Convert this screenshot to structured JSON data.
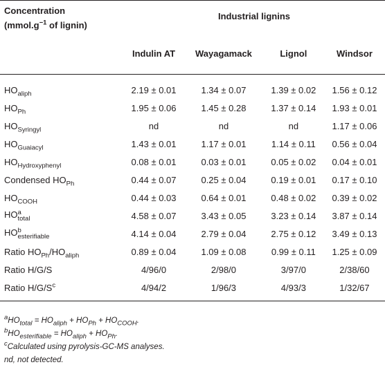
{
  "header": {
    "label_lines": [
      [
        {
          "text": "Concentration"
        }
      ],
      [
        {
          "text": "(mmol.g"
        },
        {
          "text": "−1",
          "style": "sup"
        },
        {
          "text": " of lignin)"
        }
      ]
    ],
    "group": "Industrial lignins",
    "columns": [
      "Indulin AT",
      "Wayagamack",
      "Lignol",
      "Windsor"
    ]
  },
  "table": {
    "rows": [
      {
        "label": [
          {
            "text": "HO"
          },
          {
            "text": "aliph",
            "style": "sub"
          }
        ],
        "values": [
          "2.19 ± 0.01",
          "1.34 ± 0.07",
          "1.39 ± 0.02",
          "1.56 ± 0.12"
        ]
      },
      {
        "label": [
          {
            "text": "HO"
          },
          {
            "text": "Ph",
            "style": "sub"
          }
        ],
        "values": [
          "1.95 ± 0.06",
          "1.45 ± 0.28",
          "1.37 ± 0.14",
          "1.93 ± 0.01"
        ]
      },
      {
        "label": [
          {
            "text": "HO"
          },
          {
            "text": "Syringyl",
            "style": "sub"
          }
        ],
        "values": [
          "nd",
          "nd",
          "nd",
          "1.17 ± 0.06"
        ]
      },
      {
        "label": [
          {
            "text": "HO"
          },
          {
            "text": "Guaiacyl",
            "style": "sub"
          }
        ],
        "values": [
          "1.43 ± 0.01",
          "1.17 ± 0.01",
          "1.14 ± 0.11",
          "0.56 ± 0.04"
        ]
      },
      {
        "label": [
          {
            "text": "HO"
          },
          {
            "text": "Hydroxyphenyl",
            "style": "sub"
          }
        ],
        "values": [
          "0.08 ± 0.01",
          "0.03 ± 0.01",
          "0.05 ± 0.02",
          "0.04 ± 0.01"
        ]
      },
      {
        "label": [
          {
            "text": "Condensed HO"
          },
          {
            "text": "Ph",
            "style": "sub"
          }
        ],
        "values": [
          "0.44 ± 0.07",
          "0.25 ± 0.04",
          "0.19 ± 0.01",
          "0.17 ± 0.10"
        ]
      },
      {
        "label": [
          {
            "text": "HO"
          },
          {
            "text": "COOH",
            "style": "sub"
          }
        ],
        "values": [
          "0.44 ± 0.03",
          "0.64 ± 0.01",
          "0.48 ± 0.02",
          "0.39 ± 0.02"
        ]
      },
      {
        "label": [
          {
            "text": "HO"
          },
          {
            "text": "a",
            "style": "sup"
          },
          {
            "text": "total",
            "style": "sub"
          }
        ],
        "values": [
          "4.58 ± 0.07",
          "3.43 ± 0.05",
          "3.23 ± 0.14",
          "3.87 ± 0.14"
        ]
      },
      {
        "label": [
          {
            "text": "HO"
          },
          {
            "text": "b",
            "style": "sup"
          },
          {
            "text": "esterifiable",
            "style": "sub"
          }
        ],
        "values": [
          "4.14 ± 0.04",
          "2.79 ± 0.04",
          "2.75 ± 0.12",
          "3.49 ± 0.13"
        ]
      },
      {
        "label": [
          {
            "text": "Ratio HO"
          },
          {
            "text": "Ph",
            "style": "sub"
          },
          {
            "text": "/HO"
          },
          {
            "text": "aliph",
            "style": "sub"
          }
        ],
        "values": [
          "0.89 ± 0.04",
          "1.09 ± 0.08",
          "0.99 ± 0.11",
          "1.25 ± 0.09"
        ]
      },
      {
        "label": [
          {
            "text": "Ratio H/G/S"
          }
        ],
        "values": [
          "4/96/0",
          "2/98/0",
          "3/97/0",
          "2/38/60"
        ]
      },
      {
        "label": [
          {
            "text": "Ratio H/G/S"
          },
          {
            "text": "c",
            "style": "sup"
          }
        ],
        "values": [
          "4/94/2",
          "1/96/3",
          "4/93/3",
          "1/32/67"
        ]
      }
    ]
  },
  "footnotes": [
    [
      {
        "text": "a",
        "style": "sup"
      },
      {
        "text": "HO"
      },
      {
        "text": "total",
        "style": "sub"
      },
      {
        "text": " = HO"
      },
      {
        "text": "aliph",
        "style": "sub"
      },
      {
        "text": " + HO"
      },
      {
        "text": "Ph",
        "style": "sub"
      },
      {
        "text": " + HO"
      },
      {
        "text": "COOH",
        "style": "sub"
      },
      {
        "text": "."
      }
    ],
    [
      {
        "text": "b",
        "style": "sup"
      },
      {
        "text": "HO"
      },
      {
        "text": "esterifiable",
        "style": "sub"
      },
      {
        "text": " = HO"
      },
      {
        "text": "aliph",
        "style": "sub"
      },
      {
        "text": " + HO"
      },
      {
        "text": "Ph",
        "style": "sub"
      },
      {
        "text": "."
      }
    ],
    [
      {
        "text": "c",
        "style": "sup"
      },
      {
        "text": "Calculated using pyrolysis-GC-MS analyses."
      }
    ],
    [
      {
        "text": "nd, not detected."
      }
    ]
  ]
}
